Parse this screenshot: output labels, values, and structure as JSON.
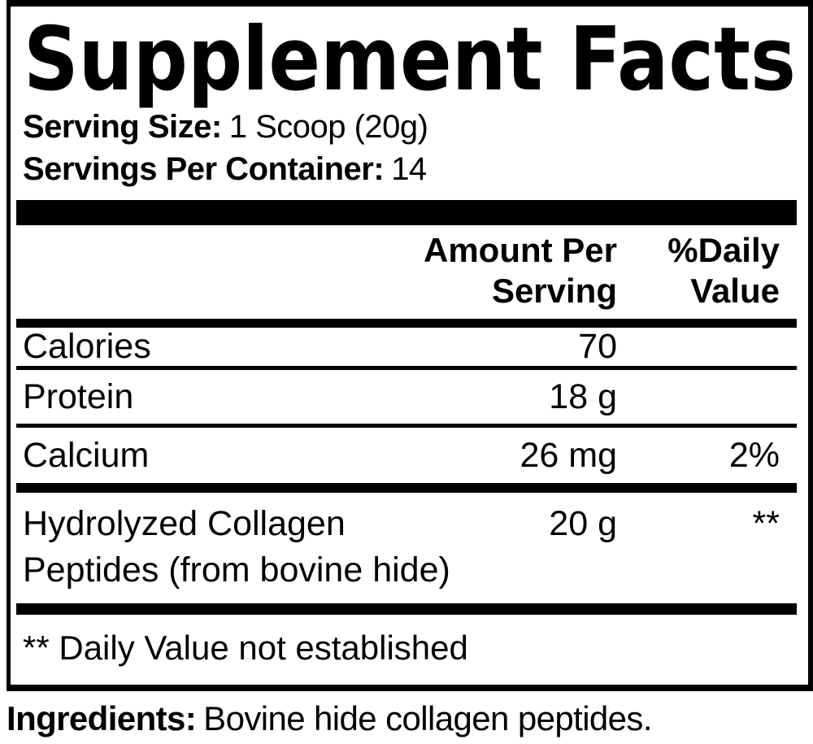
{
  "title": "Supplement Facts",
  "serving_info": {
    "serving_size_label": "Serving Size:",
    "serving_size_value": "1 Scoop (20g)",
    "servings_per_container_label": "Servings Per Container:",
    "servings_per_container_value": "14"
  },
  "table": {
    "header": {
      "amount_line1": "Amount Per",
      "amount_line2": "Serving",
      "dv_line1": "%Daily",
      "dv_line2": "Value"
    },
    "rows": [
      {
        "name": "Calories",
        "amount": "70",
        "dv": ""
      },
      {
        "name": "Protein",
        "amount": "18 g",
        "dv": ""
      },
      {
        "name": "Calcium",
        "amount": "26 mg",
        "dv": "2%"
      }
    ],
    "ingredient_rows": [
      {
        "name_line1": "Hydrolyzed Collagen",
        "name_line2": "Peptides (from bovine hide)",
        "amount": "20 g",
        "dv": "**"
      }
    ],
    "footnote": "** Daily Value not established"
  },
  "ingredients": {
    "label": "Ingredients:",
    "value": "Bovine hide collagen peptides."
  },
  "colors": {
    "text": "#000000",
    "background": "#ffffff",
    "border": "#000000"
  }
}
